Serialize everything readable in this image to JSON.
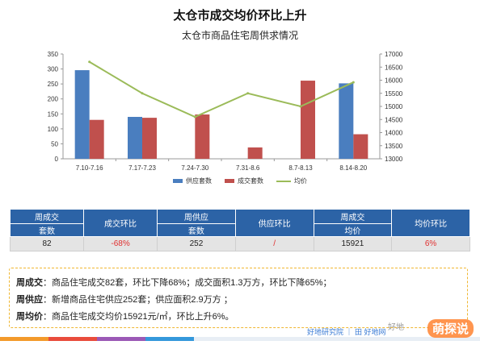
{
  "title": "太仓市成交均价环比上升",
  "subtitle": "太仓市商品住宅周供求情况",
  "chart_data": {
    "type": "bar",
    "categories": [
      "7.10-7.16",
      "7.17-7.23",
      "7.24-7.30",
      "7.31-8.6",
      "8.7-8.13",
      "8.14-8.20"
    ],
    "series": [
      {
        "name": "供应套数",
        "type": "bar",
        "axis": "left",
        "color": "#4a7ebf",
        "values": [
          296,
          140,
          0,
          0,
          0,
          252
        ]
      },
      {
        "name": "成交套数",
        "type": "bar",
        "axis": "left",
        "color": "#c0504d",
        "values": [
          130,
          137,
          148,
          38,
          261,
          82
        ]
      },
      {
        "name": "均价",
        "type": "line",
        "axis": "right",
        "color": "#9bbb59",
        "values": [
          16700,
          15500,
          14600,
          15500,
          15000,
          15921
        ]
      }
    ],
    "y_left": {
      "min": 0,
      "max": 350,
      "ticks": [
        0,
        50,
        100,
        150,
        200,
        250,
        300,
        350
      ]
    },
    "y_right": {
      "min": 13000,
      "max": 17000,
      "ticks": [
        13000,
        13500,
        14000,
        14500,
        15000,
        15500,
        16000,
        16500,
        17000
      ]
    },
    "legend": "bottom",
    "grid": false
  },
  "table": {
    "row1": [
      "周成交",
      "成交环比",
      "周供应",
      "供应环比",
      "周成交",
      "均价环比"
    ],
    "row2": [
      "套数",
      "套数",
      "均价"
    ],
    "values": [
      "82",
      "-68%",
      "252",
      "/",
      "15921",
      "6%"
    ]
  },
  "notes": [
    {
      "label": "周成交",
      "text": "：商品住宅成交82套，环比下降68%；成交面积1.3万方，环比下降65%；"
    },
    {
      "label": "周供应",
      "text": "：新增商品住宅供应252套；供应面积2.9万方 ；"
    },
    {
      "label": "周均价",
      "text": "：商品住宅成交均价15921元/㎡，环比上升6%。"
    }
  ],
  "footer": {
    "brand": "好地研究院 ｜ 田 好地网",
    "wechat": "好地",
    "watermark": "萌探说"
  },
  "colors": {
    "header_blue": "#2c63a6",
    "accent_red": "#e03030",
    "note_border": "#f0b731"
  }
}
